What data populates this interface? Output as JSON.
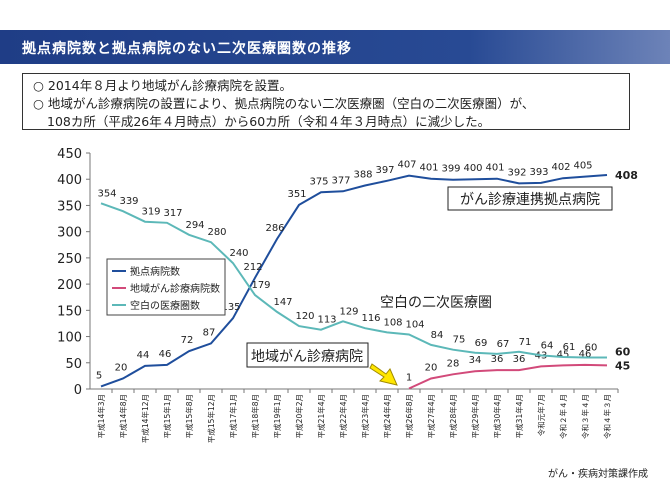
{
  "page": {
    "title": "拠点病院数と拠点病院のない二次医療圏数の推移",
    "summary_lines": [
      "○ 2014年８月より地域がん診療病院を設置。",
      "○ 地域がん診療病院の設置により、拠点病院のない二次医療圏（空白の二次医療圏）が、",
      "108カ所（平成26年４月時点）から60カ所（令和４年３月時点）に減少した。"
    ],
    "credit": "がん・疾病対策課作成"
  },
  "chart_data": {
    "type": "line",
    "ylim": [
      0,
      450
    ],
    "yticks": [
      0,
      50,
      100,
      150,
      200,
      250,
      300,
      350,
      400,
      450
    ],
    "categories": [
      "平成14年3月",
      "平成14年8月",
      "平成14年12月",
      "平成15年1月",
      "平成15年8月",
      "平成15年12月",
      "平成17年1月",
      "平成18年8月",
      "平成19年1月",
      "平成20年2月",
      "平成21年4月",
      "平成22年4月",
      "平成23年4月",
      "平成24年4月",
      "平成26年8月",
      "平成27年4月",
      "平成28年4月",
      "平成29年4月",
      "平成30年4月",
      "平成31年4月",
      "令和元年7月",
      "令和２年４月",
      "令和３年４月",
      "令和４年３月"
    ],
    "legend_position": "left-middle",
    "series": [
      {
        "name": "拠点病院数",
        "color": "#1f4e9c",
        "values": [
          5,
          20,
          44,
          46,
          72,
          87,
          135,
          212,
          286,
          351,
          375,
          377,
          388,
          397,
          407,
          401,
          399,
          400,
          401,
          392,
          393,
          402,
          405,
          408
        ],
        "labels": [
          "5",
          "20",
          "44",
          "46",
          "72",
          "87",
          "135",
          "212",
          "286",
          "351",
          "375",
          "377",
          "388",
          "397",
          "407",
          "401",
          "399",
          "400",
          "401",
          "392",
          "393",
          "402",
          "405",
          "408"
        ]
      },
      {
        "name": "地域がん診療病院数",
        "color": "#d24a7a",
        "values": [
          null,
          null,
          null,
          null,
          null,
          null,
          null,
          null,
          null,
          null,
          null,
          null,
          null,
          null,
          1,
          20,
          28,
          34,
          36,
          36,
          43,
          45,
          46,
          45
        ],
        "labels": [
          "",
          "",
          "",
          "",
          "",
          "",
          "",
          "",
          "",
          "",
          "",
          "",
          "",
          "",
          "1",
          "20",
          "28",
          "34",
          "36",
          "36",
          "43",
          "45",
          "46",
          "45"
        ]
      },
      {
        "name": "空白の医療圏数",
        "color": "#5cb8b8",
        "values": [
          354,
          339,
          319,
          317,
          294,
          280,
          240,
          179,
          147,
          120,
          113,
          129,
          116,
          108,
          104,
          84,
          75,
          69,
          67,
          71,
          64,
          61,
          60,
          60
        ],
        "labels": [
          "354",
          "339",
          "319",
          "317",
          "294",
          "280",
          "240",
          "179",
          "147",
          "120",
          "113",
          "129",
          "116",
          "108",
          "104",
          "84",
          "75",
          "69",
          "67",
          "71",
          "64",
          "61",
          "60",
          "60"
        ]
      }
    ],
    "annotations": {
      "kyoten": "がん診療連携拠点病院",
      "kuhaku": "空白の二次医療圏",
      "chiiki": "地域がん診療病院"
    }
  }
}
